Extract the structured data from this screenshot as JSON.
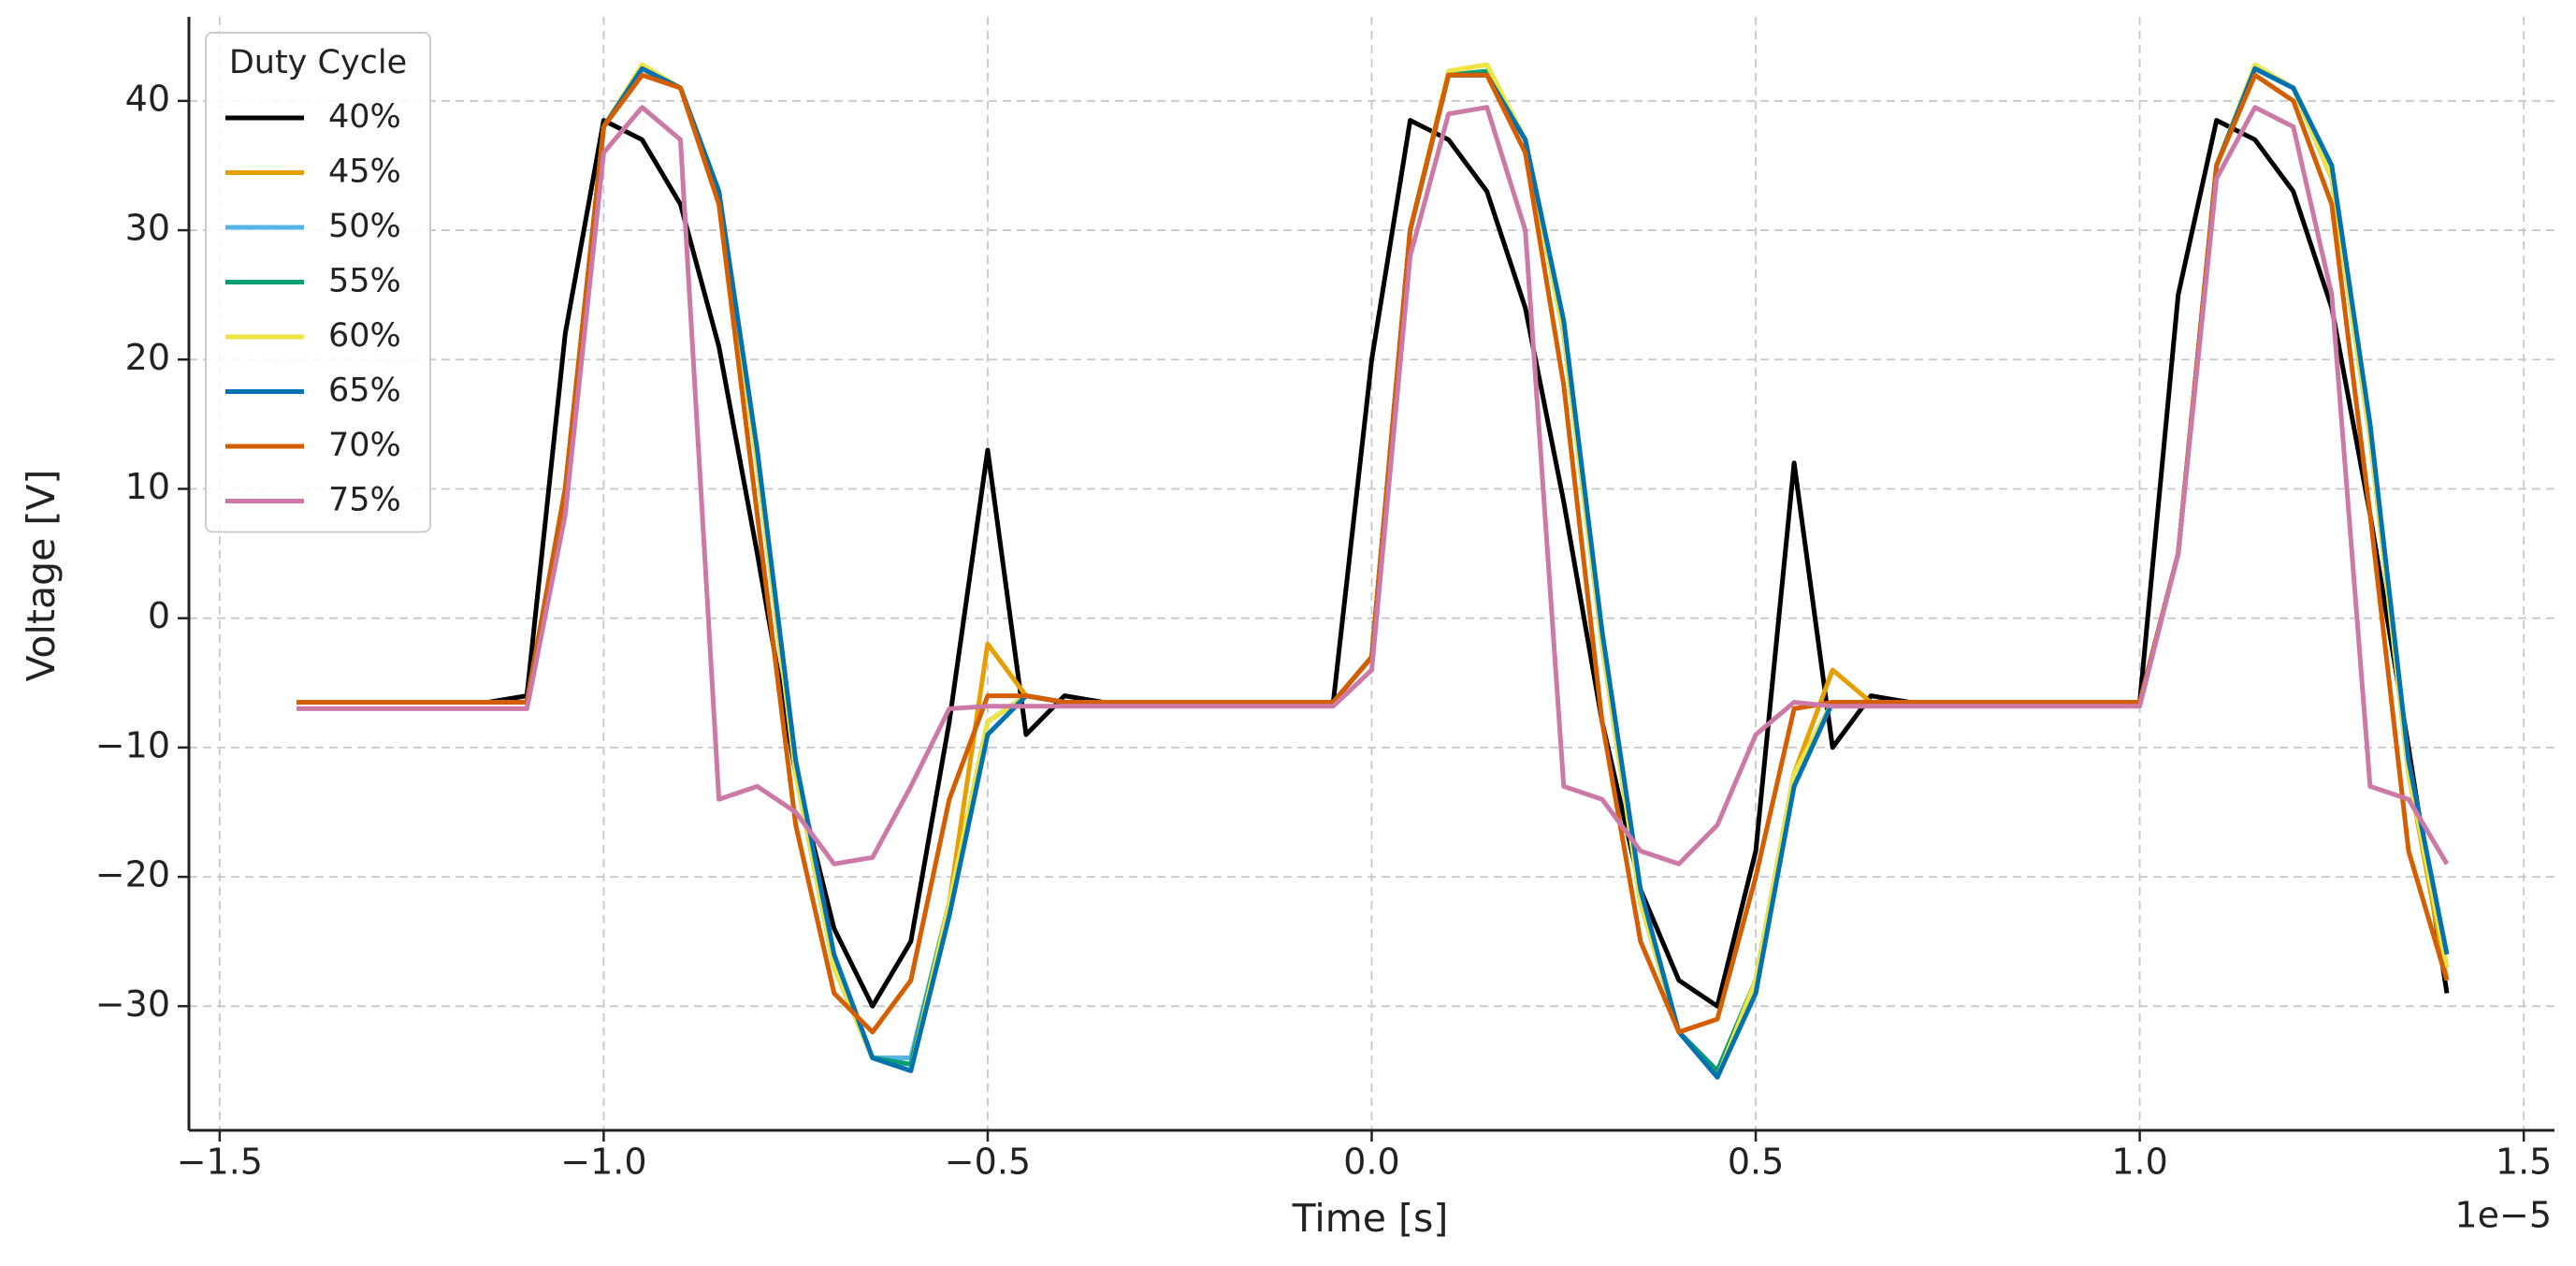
{
  "chart_data": {
    "type": "line",
    "xlabel": "Time [s]",
    "ylabel": "Voltage [V]",
    "x_offset_label": "1e−5",
    "legend_title": "Duty Cycle",
    "legend": "upper left",
    "grid": true,
    "xlim": [
      -1.54e-05,
      1.54e-05
    ],
    "ylim": [
      -39.6,
      46.5
    ],
    "xticks": [
      {
        "value": -1.5e-05,
        "label": "−1.5"
      },
      {
        "value": -1e-05,
        "label": "−1.0"
      },
      {
        "value": -5e-06,
        "label": "−0.5"
      },
      {
        "value": 0,
        "label": "0.0"
      },
      {
        "value": 5e-06,
        "label": "0.5"
      },
      {
        "value": 1e-05,
        "label": "1.0"
      },
      {
        "value": 1.5e-05,
        "label": "1.5"
      }
    ],
    "yticks": [
      {
        "value": -30,
        "label": "−30"
      },
      {
        "value": -20,
        "label": "−20"
      },
      {
        "value": -10,
        "label": "−10"
      },
      0,
      10,
      20,
      30,
      40
    ],
    "x": [
      -1.4e-05,
      -1.35e-05,
      -1.3e-05,
      -1.25e-05,
      -1.2e-05,
      -1.15e-05,
      -1.1e-05,
      -1.05e-05,
      -1e-05,
      -9.5e-06,
      -9e-06,
      -8.5e-06,
      -8e-06,
      -7.5e-06,
      -7e-06,
      -6.5e-06,
      -6e-06,
      -5.5e-06,
      -5e-06,
      -4.5e-06,
      -4e-06,
      -3.5e-06,
      -3e-06,
      -2.5e-06,
      -2e-06,
      -1.5e-06,
      -1e-06,
      -5e-07,
      0,
      5e-07,
      1e-06,
      1.5e-06,
      2e-06,
      2.5e-06,
      3e-06,
      3.5e-06,
      4e-06,
      4.5e-06,
      5e-06,
      5.5e-06,
      6e-06,
      6.5e-06,
      7e-06,
      7.5e-06,
      8e-06,
      8.5e-06,
      9e-06,
      9.5e-06,
      1e-05,
      1.05e-05,
      1.1e-05,
      1.15e-05,
      1.2e-05,
      1.25e-05,
      1.3e-05,
      1.35e-05,
      1.4e-05
    ],
    "series": [
      {
        "name": "40%",
        "color": "#000000",
        "values": [
          -6.5,
          -6.5,
          -6.5,
          -6.5,
          -6.5,
          -6.5,
          -6,
          22,
          38.5,
          37,
          32,
          21,
          5,
          -12,
          -24,
          -30,
          -25,
          -8,
          13,
          -9,
          -6,
          -6.5,
          -6.5,
          -6.5,
          -6.5,
          -6.5,
          -6.5,
          -6.5,
          20,
          38.5,
          37,
          33,
          24,
          9,
          -8,
          -21,
          -28,
          -30,
          -18,
          12,
          -10,
          -6,
          -6.5,
          -6.5,
          -6.5,
          -6.5,
          -6.5,
          -6.5,
          -6.5,
          25,
          38.5,
          37,
          33,
          24,
          8,
          -10,
          -29
        ]
      },
      {
        "name": "45%",
        "color": "#E69F00",
        "values": [
          -6.5,
          -6.5,
          -6.5,
          -6.5,
          -6.5,
          -6.5,
          -6.5,
          10,
          38,
          42.5,
          41,
          33,
          12,
          -12,
          -27,
          -34,
          -34,
          -22,
          -2,
          -6,
          -6.5,
          -6.5,
          -6.5,
          -6.5,
          -6.5,
          -6.5,
          -6.5,
          -6.5,
          -3,
          30,
          42,
          42,
          37,
          22,
          -2,
          -22,
          -32,
          -35,
          -28,
          -12,
          -4,
          -6.5,
          -6.5,
          -6.5,
          -6.5,
          -6.5,
          -6.5,
          -6.5,
          -6.5,
          5,
          35,
          42.5,
          41,
          34,
          14,
          -12,
          -28
        ]
      },
      {
        "name": "50%",
        "color": "#56B4E9",
        "values": [
          -6.5,
          -6.5,
          -6.5,
          -6.5,
          -6.5,
          -6.5,
          -6.5,
          10,
          38,
          42.5,
          41,
          33,
          12,
          -12,
          -27,
          -34,
          -34,
          -22,
          -8,
          -6,
          -6.5,
          -6.5,
          -6.5,
          -6.5,
          -6.5,
          -6.5,
          -6.5,
          -6.5,
          -3,
          30,
          42,
          42,
          37,
          22,
          -2,
          -22,
          -32,
          -35,
          -28,
          -12,
          -6.5,
          -6.5,
          -6.5,
          -6.5,
          -6.5,
          -6.5,
          -6.5,
          -6.5,
          -6.5,
          5,
          35,
          42.5,
          41,
          34,
          14,
          -12,
          -27
        ]
      },
      {
        "name": "55%",
        "color": "#009E73",
        "values": [
          -6.5,
          -6.5,
          -6.5,
          -6.5,
          -6.5,
          -6.5,
          -6.5,
          10,
          38,
          42.5,
          41,
          33,
          12,
          -12,
          -27,
          -34,
          -34.5,
          -22,
          -8,
          -6,
          -6.5,
          -6.5,
          -6.5,
          -6.5,
          -6.5,
          -6.5,
          -6.5,
          -6.5,
          -3,
          30,
          42,
          42.3,
          37,
          22,
          -2,
          -22,
          -32,
          -35,
          -28,
          -12,
          -6.5,
          -6.5,
          -6.5,
          -6.5,
          -6.5,
          -6.5,
          -6.5,
          -6.5,
          -6.5,
          5,
          35,
          42.5,
          41,
          34,
          14,
          -12,
          -27
        ]
      },
      {
        "name": "60%",
        "color": "#F0E442",
        "values": [
          -6.5,
          -6.5,
          -6.5,
          -6.5,
          -6.5,
          -6.5,
          -6.5,
          10,
          38,
          42.8,
          41,
          33,
          12,
          -12,
          -27,
          -34,
          -35,
          -22,
          -8,
          -6,
          -6.5,
          -6.5,
          -6.5,
          -6.5,
          -6.5,
          -6.5,
          -6.5,
          -6.5,
          -3,
          30,
          42.3,
          42.8,
          37,
          22,
          -2,
          -22,
          -32,
          -35.5,
          -28,
          -12,
          -6.5,
          -6.5,
          -6.5,
          -6.5,
          -6.5,
          -6.5,
          -6.5,
          -6.5,
          -6.5,
          5,
          35,
          42.8,
          41,
          34,
          14,
          -12,
          -27
        ]
      },
      {
        "name": "65%",
        "color": "#0072B2",
        "values": [
          -6.5,
          -6.5,
          -6.5,
          -6.5,
          -6.5,
          -6.5,
          -6.5,
          10,
          38,
          42.5,
          41,
          33,
          13,
          -11,
          -26,
          -34,
          -35,
          -23,
          -9,
          -6,
          -6.5,
          -6.5,
          -6.5,
          -6.5,
          -6.5,
          -6.5,
          -6.5,
          -6.5,
          -3,
          30,
          42,
          42,
          37,
          23,
          -1,
          -21,
          -32,
          -35.5,
          -29,
          -13,
          -6.5,
          -6.5,
          -6.5,
          -6.5,
          -6.5,
          -6.5,
          -6.5,
          -6.5,
          -6.5,
          5,
          35,
          42.5,
          41,
          35,
          15,
          -11,
          -26
        ]
      },
      {
        "name": "70%",
        "color": "#D55E00",
        "values": [
          -6.5,
          -6.5,
          -6.5,
          -6.5,
          -6.5,
          -6.5,
          -6.5,
          10,
          38,
          42,
          41,
          32,
          8,
          -16,
          -29,
          -32,
          -28,
          -14,
          -6,
          -6,
          -6.5,
          -6.5,
          -6.5,
          -6.5,
          -6.5,
          -6.5,
          -6.5,
          -6.5,
          -3,
          30,
          42,
          42,
          36,
          18,
          -8,
          -25,
          -32,
          -31,
          -20,
          -7,
          -6.5,
          -6.5,
          -6.5,
          -6.5,
          -6.5,
          -6.5,
          -6.5,
          -6.5,
          -6.5,
          5,
          35,
          42,
          40,
          32,
          8,
          -18,
          -28
        ]
      },
      {
        "name": "75%",
        "color": "#CC79A7",
        "values": [
          -7,
          -7,
          -7,
          -7,
          -7,
          -7,
          -7,
          8,
          36,
          39.5,
          37,
          -14,
          -13,
          -15,
          -19,
          -18.5,
          -13,
          -7,
          -6.8,
          -6.8,
          -6.8,
          -6.8,
          -6.8,
          -6.8,
          -6.8,
          -6.8,
          -6.8,
          -6.8,
          -4,
          28,
          39,
          39.5,
          30,
          -13,
          -14,
          -18,
          -19,
          -16,
          -9,
          -6.5,
          -6.8,
          -6.8,
          -6.8,
          -6.8,
          -6.8,
          -6.8,
          -6.8,
          -6.8,
          -6.8,
          5,
          34,
          39.5,
          38,
          25,
          -13,
          -14,
          -19
        ]
      }
    ]
  }
}
